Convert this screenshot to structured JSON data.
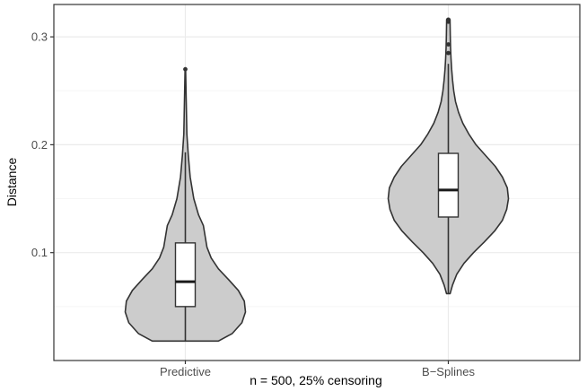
{
  "chart_data": {
    "type": "violin",
    "categories": [
      "Predictive",
      "B−Splines"
    ],
    "xlabel": "n = 500, 25% censoring",
    "ylabel": "Distance",
    "ylim": [
      0.0,
      0.33
    ],
    "yticks": [
      0.1,
      0.2,
      0.3
    ],
    "ytick_labels": [
      "0.1",
      "0.2",
      "0.3"
    ],
    "grid": true,
    "series": [
      {
        "category": "Predictive",
        "min": 0.018,
        "q1": 0.05,
        "median": 0.073,
        "q3": 0.109,
        "whisker_high": 0.193,
        "outliers": [
          0.27
        ],
        "density_profile": [
          [
            0.018,
            0.55
          ],
          [
            0.025,
            0.78
          ],
          [
            0.035,
            0.94
          ],
          [
            0.045,
            1.0
          ],
          [
            0.055,
            0.98
          ],
          [
            0.065,
            0.88
          ],
          [
            0.075,
            0.72
          ],
          [
            0.085,
            0.55
          ],
          [
            0.095,
            0.43
          ],
          [
            0.105,
            0.36
          ],
          [
            0.115,
            0.33
          ],
          [
            0.125,
            0.3
          ],
          [
            0.135,
            0.22
          ],
          [
            0.15,
            0.14
          ],
          [
            0.17,
            0.08
          ],
          [
            0.19,
            0.05
          ],
          [
            0.21,
            0.025
          ],
          [
            0.24,
            0.015
          ],
          [
            0.27,
            0.005
          ]
        ]
      },
      {
        "category": "B−Splines",
        "min": 0.062,
        "q1": 0.133,
        "median": 0.158,
        "q3": 0.192,
        "whisker_high": 0.275,
        "outliers": [
          0.285,
          0.293,
          0.314,
          0.316
        ],
        "density_profile": [
          [
            0.062,
            0.03
          ],
          [
            0.07,
            0.07
          ],
          [
            0.08,
            0.14
          ],
          [
            0.09,
            0.26
          ],
          [
            0.1,
            0.42
          ],
          [
            0.11,
            0.6
          ],
          [
            0.12,
            0.77
          ],
          [
            0.13,
            0.9
          ],
          [
            0.14,
            0.97
          ],
          [
            0.15,
            1.0
          ],
          [
            0.16,
            0.98
          ],
          [
            0.17,
            0.9
          ],
          [
            0.18,
            0.78
          ],
          [
            0.19,
            0.62
          ],
          [
            0.2,
            0.46
          ],
          [
            0.21,
            0.34
          ],
          [
            0.22,
            0.24
          ],
          [
            0.23,
            0.17
          ],
          [
            0.24,
            0.12
          ],
          [
            0.25,
            0.09
          ],
          [
            0.26,
            0.07
          ],
          [
            0.27,
            0.055
          ],
          [
            0.28,
            0.045
          ],
          [
            0.29,
            0.038
          ],
          [
            0.3,
            0.033
          ],
          [
            0.31,
            0.03
          ],
          [
            0.316,
            0.028
          ]
        ]
      }
    ],
    "colors": {
      "violin_fill": "#cccccc",
      "violin_stroke": "#333333",
      "box_fill": "#ffffff",
      "grid_major": "#ebebeb",
      "grid_minor": "#f5f5f5",
      "axis": "#333333"
    }
  }
}
